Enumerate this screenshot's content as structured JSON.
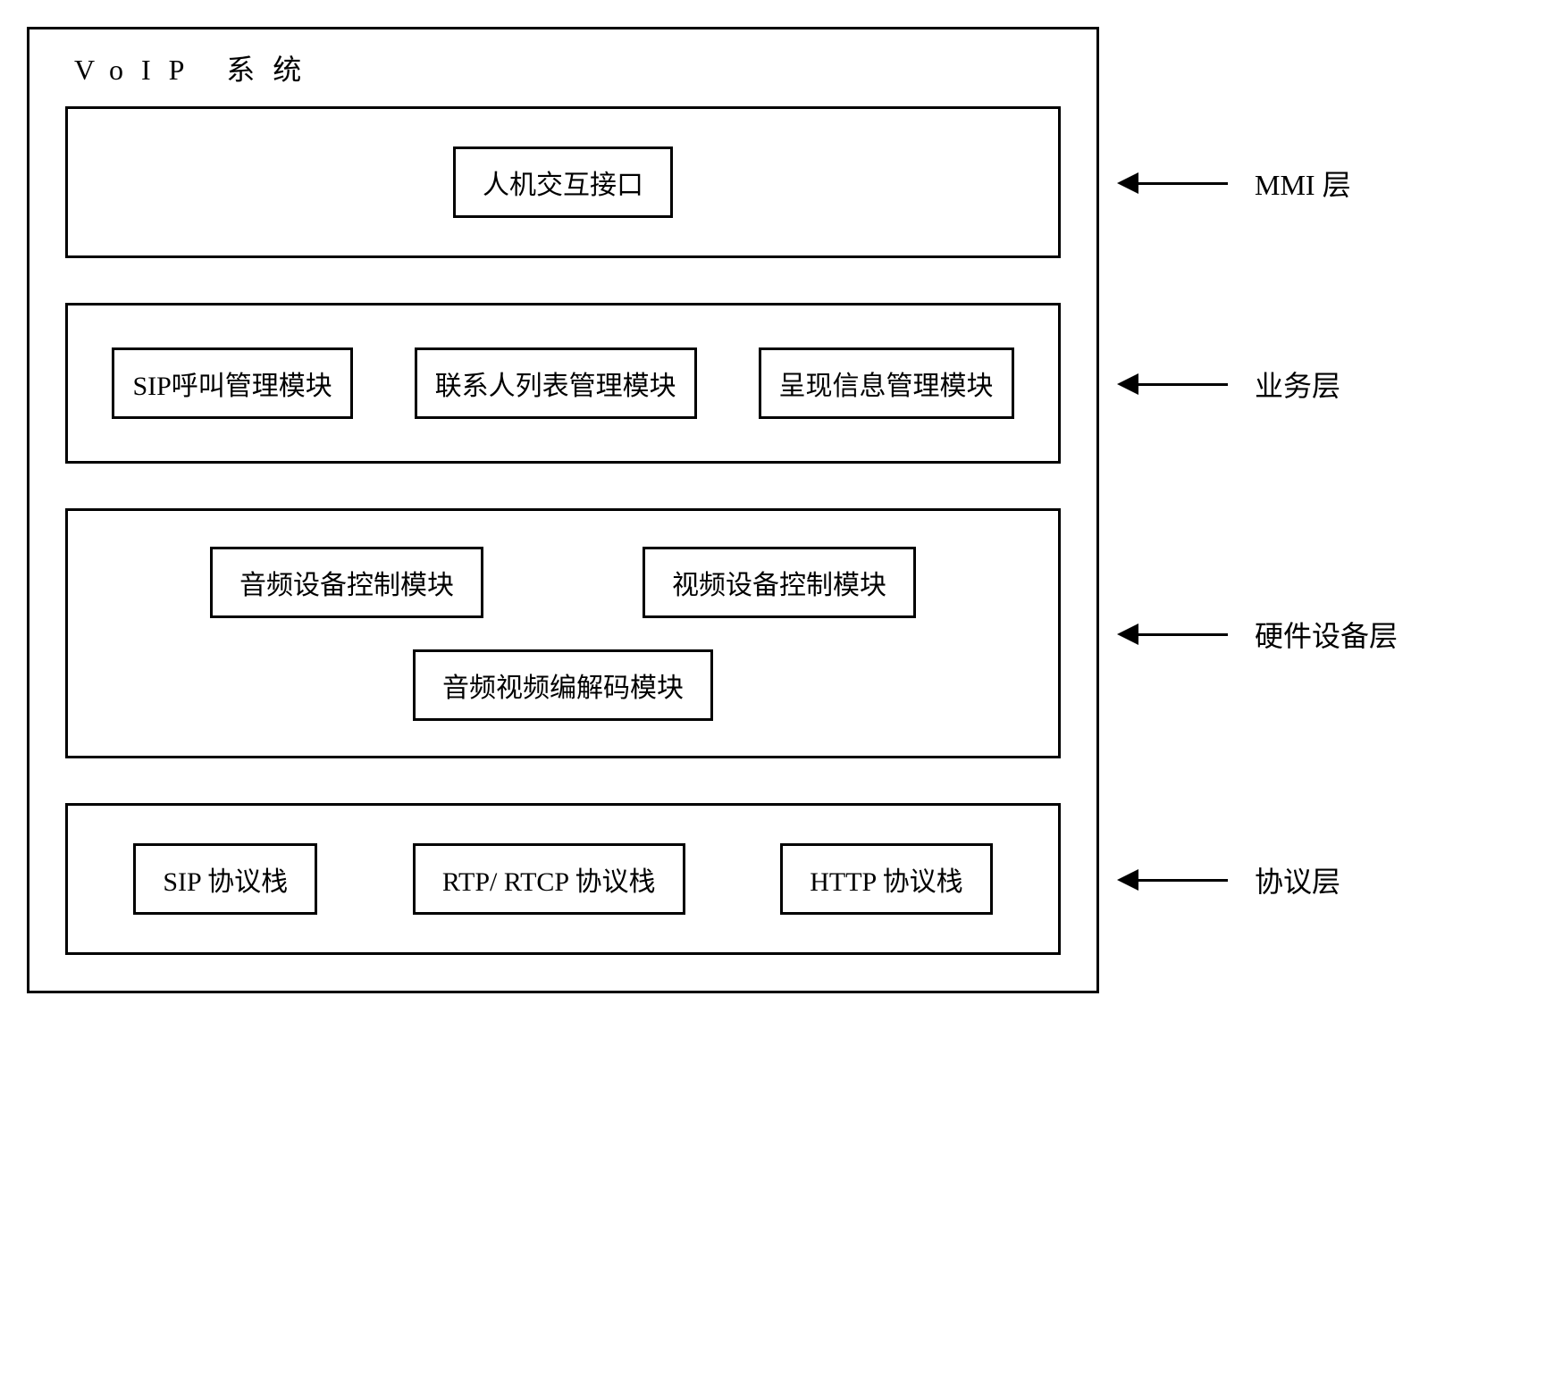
{
  "diagram": {
    "type": "block-diagram",
    "main_title": "VoIP 系统",
    "colors": {
      "border": "#000000",
      "background": "#ffffff",
      "text": "#000000"
    },
    "typography": {
      "font_family": "SimSun",
      "title_fontsize": 32,
      "box_fontsize": 30,
      "label_fontsize": 32
    },
    "border_width": 3,
    "layers": [
      {
        "id": "mmi",
        "label": "MMI 层",
        "boxes": [
          "人机交互接口"
        ]
      },
      {
        "id": "service",
        "label": "业务层",
        "boxes": [
          "SIP呼叫管理模块",
          "联系人列表管理模块",
          "呈现信息管理模块"
        ]
      },
      {
        "id": "hardware",
        "label": "硬件设备层",
        "row1": [
          "音频设备控制模块",
          "视频设备控制模块"
        ],
        "row2": [
          "音频视频编解码模块"
        ]
      },
      {
        "id": "protocol",
        "label": "协议层",
        "boxes": [
          "SIP 协议栈",
          "RTP/ RTCP 协议栈",
          "HTTP 协议栈"
        ]
      }
    ]
  }
}
